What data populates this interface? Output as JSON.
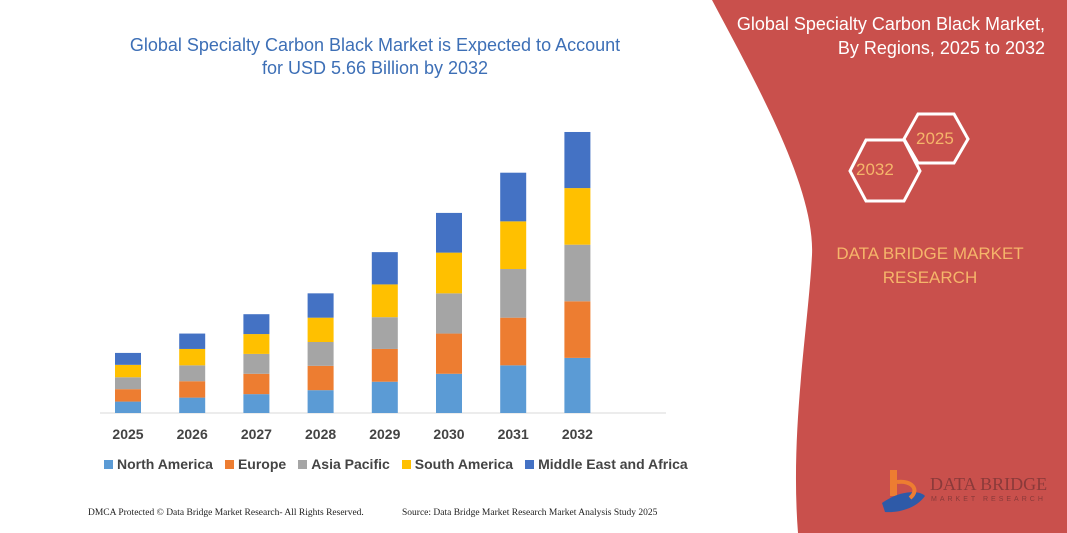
{
  "header": {
    "title_line1": "Global Specialty Carbon Black Market is Expected to Account",
    "title_line2": "for USD 5.66 Billion by 2032"
  },
  "side_panel": {
    "title_line1": "Global Specialty Carbon Black Market,",
    "title_line2": "By Regions, 2025 to 2032",
    "hex_left": "2032",
    "hex_right": "2025",
    "brand_line1": "DATA BRIDGE MARKET",
    "brand_line2": "RESEARCH",
    "logo_text": "DATA BRIDGE",
    "logo_sub": "MARKET RESEARCH",
    "panel_color": "#c9504c"
  },
  "footer": {
    "left": "DMCA Protected © Data Bridge Market Research- All Rights Reserved.",
    "right": "Source: Data Bridge Market Research Market Analysis Study 2025"
  },
  "chart_data": {
    "type": "bar",
    "stacked": true,
    "categories": [
      "2025",
      "2026",
      "2027",
      "2028",
      "2029",
      "2030",
      "2031",
      "2032"
    ],
    "series": [
      {
        "name": "North America",
        "color": "#5b9bd5",
        "values": [
          0.23,
          0.31,
          0.38,
          0.46,
          0.63,
          0.79,
          0.96,
          1.11
        ]
      },
      {
        "name": "Europe",
        "color": "#ed7d31",
        "values": [
          0.25,
          0.33,
          0.41,
          0.49,
          0.66,
          0.81,
          0.96,
          1.14
        ]
      },
      {
        "name": "Asia Pacific",
        "color": "#a5a5a5",
        "values": [
          0.24,
          0.32,
          0.4,
          0.48,
          0.64,
          0.81,
          0.98,
          1.14
        ]
      },
      {
        "name": "South America",
        "color": "#ffc000",
        "values": [
          0.25,
          0.33,
          0.4,
          0.49,
          0.66,
          0.82,
          0.96,
          1.14
        ]
      },
      {
        "name": "Middle East and Africa",
        "color": "#4472c4",
        "values": [
          0.24,
          0.31,
          0.4,
          0.49,
          0.65,
          0.8,
          0.98,
          1.13
        ]
      }
    ],
    "ylim": [
      0,
      5.7
    ],
    "grid": false,
    "legend": "bottom"
  }
}
